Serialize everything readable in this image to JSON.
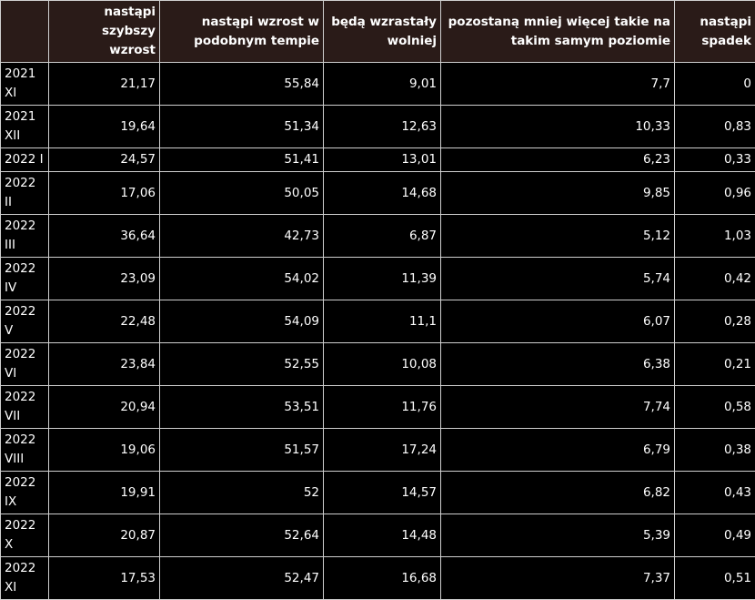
{
  "table": {
    "columns": [
      "",
      "nastąpi szybszy wzrost",
      "nastąpi wzrost w podobnym tempie",
      "będą wzrastały wolniej",
      "pozostaną mniej więcej takie na takim samym poziomie",
      "nastąpi spadek"
    ],
    "rows": [
      [
        "2021 XI",
        "21,17",
        "55,84",
        "9,01",
        "7,7",
        "0"
      ],
      [
        "2021 XII",
        "19,64",
        "51,34",
        "12,63",
        "10,33",
        "0,83"
      ],
      [
        "2022 I",
        "24,57",
        "51,41",
        "13,01",
        "6,23",
        "0,33"
      ],
      [
        "2022 II",
        "17,06",
        "50,05",
        "14,68",
        "9,85",
        "0,96"
      ],
      [
        "2022 III",
        "36,64",
        "42,73",
        "6,87",
        "5,12",
        "1,03"
      ],
      [
        "2022 IV",
        "23,09",
        "54,02",
        "11,39",
        "5,74",
        "0,42"
      ],
      [
        "2022 V",
        "22,48",
        "54,09",
        "11,1",
        "6,07",
        "0,28"
      ],
      [
        "2022 VI",
        "23,84",
        "52,55",
        "10,08",
        "6,38",
        "0,21"
      ],
      [
        "2022 VII",
        "20,94",
        "53,51",
        "11,76",
        "7,74",
        "0,58"
      ],
      [
        "2022 VIII",
        "19,06",
        "51,57",
        "17,24",
        "6,79",
        "0,38"
      ],
      [
        "2022 IX",
        "19,91",
        "52",
        "14,57",
        "6,82",
        "0,43"
      ],
      [
        "2022 X",
        "20,87",
        "52,64",
        "14,48",
        "5,39",
        "0,49"
      ],
      [
        "2022 XI",
        "17,53",
        "52,47",
        "16,68",
        "7,37",
        "0,51"
      ]
    ]
  },
  "colors": {
    "background": "#000000",
    "header_background": "#2a1b18",
    "text": "#ffffff",
    "border": "#cfcfcf"
  }
}
